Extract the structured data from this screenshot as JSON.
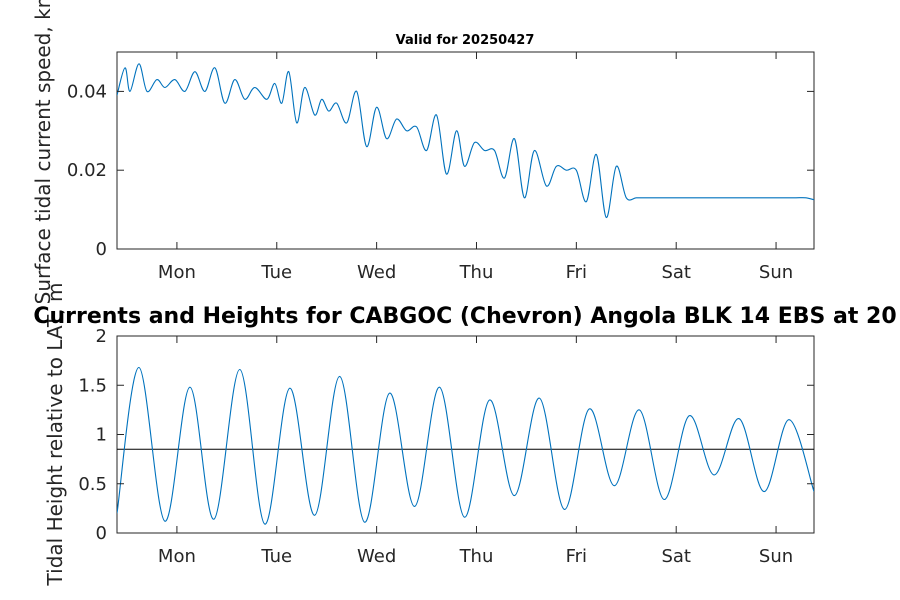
{
  "chart_data": [
    {
      "type": "line",
      "title": "Valid for 20250427",
      "ylabel": "Surface tidal current speed, kn",
      "xlabel": "",
      "ylim": [
        0,
        0.05
      ],
      "yticks": [
        0,
        0.02,
        0.04
      ],
      "ytick_labels": [
        "0",
        "0.02",
        "0.04"
      ],
      "xlim": [
        -0.6,
        6.38
      ],
      "xticks": [
        0,
        1,
        2,
        3,
        4,
        5,
        6
      ],
      "xtick_labels": [
        "Mon",
        "Tue",
        "Wed",
        "Thu",
        "Fri",
        "Sat",
        "Sun"
      ],
      "grid": false,
      "color": "#0072BD",
      "series": [
        {
          "x": [
            -0.6,
            -0.52,
            -0.47,
            -0.38,
            -0.3,
            -0.2,
            -0.12,
            -0.02,
            0.08,
            0.18,
            0.28,
            0.38,
            0.48,
            0.58,
            0.68,
            0.78,
            0.9,
            0.98,
            1.05,
            1.12,
            1.2,
            1.28,
            1.38,
            1.45,
            1.52,
            1.6,
            1.7,
            1.8,
            1.9,
            2.0,
            2.1,
            2.2,
            2.3,
            2.4,
            2.5,
            2.6,
            2.7,
            2.8,
            2.88,
            2.98,
            3.08,
            3.18,
            3.28,
            3.38,
            3.48,
            3.58,
            3.7,
            3.8,
            3.9,
            4.0,
            4.1,
            4.2,
            4.3,
            4.4,
            4.5,
            4.6,
            4.7,
            4.8,
            4.9,
            5.0,
            5.1,
            5.2,
            5.3,
            5.4,
            5.5,
            5.6,
            5.7,
            5.8,
            5.9,
            6.0,
            6.1,
            6.2,
            6.3,
            6.38
          ],
          "y": [
            0.039,
            0.046,
            0.04,
            0.047,
            0.04,
            0.043,
            0.041,
            0.043,
            0.04,
            0.045,
            0.04,
            0.046,
            0.037,
            0.043,
            0.038,
            0.041,
            0.038,
            0.042,
            0.037,
            0.045,
            0.032,
            0.041,
            0.034,
            0.038,
            0.035,
            0.037,
            0.032,
            0.04,
            0.026,
            0.036,
            0.028,
            0.033,
            0.03,
            0.031,
            0.025,
            0.034,
            0.019,
            0.03,
            0.021,
            0.027,
            0.025,
            0.025,
            0.018,
            0.028,
            0.013,
            0.025,
            0.016,
            0.021,
            0.02,
            0.02,
            0.012,
            0.024,
            0.008,
            0.021,
            0.013,
            0.013,
            0.013,
            0.013,
            0.013,
            0.013,
            0.013,
            0.013,
            0.013,
            0.013,
            0.013,
            0.013,
            0.013,
            0.013,
            0.013,
            0.013,
            0.013,
            0.013,
            0.013,
            0.0125
          ]
        }
      ]
    },
    {
      "type": "line",
      "title": "Currents and Heights for CABGOC (Chevron)  Angola BLK 14  EBS at 20",
      "ylabel": "Tidal Height relative to LAT, m",
      "xlabel": "",
      "ylim": [
        0,
        2
      ],
      "yticks": [
        0,
        0.5,
        1,
        1.5,
        2
      ],
      "ytick_labels": [
        "0",
        "0.5",
        "1",
        "1.5",
        "2"
      ],
      "xlim": [
        -0.6,
        6.38
      ],
      "xticks": [
        0,
        1,
        2,
        3,
        4,
        5,
        6
      ],
      "xtick_labels": [
        "Mon",
        "Tue",
        "Wed",
        "Thu",
        "Fri",
        "Sat",
        "Sun"
      ],
      "grid": false,
      "reference_line": 0.85,
      "color": "#0072BD",
      "series": [
        {
          "x": [
            -0.6,
            -0.38,
            -0.12,
            0.13,
            0.37,
            0.63,
            0.88,
            1.13,
            1.38,
            1.63,
            1.88,
            2.13,
            2.38,
            2.63,
            2.88,
            3.13,
            3.38,
            3.63,
            3.88,
            4.13,
            4.38,
            4.63,
            4.88,
            5.13,
            5.38,
            5.63,
            5.88,
            6.13,
            6.38
          ],
          "y": [
            0.2,
            1.68,
            0.12,
            1.48,
            0.14,
            1.66,
            0.09,
            1.47,
            0.18,
            1.59,
            0.11,
            1.42,
            0.27,
            1.48,
            0.16,
            1.35,
            0.38,
            1.37,
            0.24,
            1.26,
            0.48,
            1.25,
            0.34,
            1.19,
            0.59,
            1.16,
            0.42,
            1.15,
            0.42
          ]
        }
      ]
    }
  ]
}
